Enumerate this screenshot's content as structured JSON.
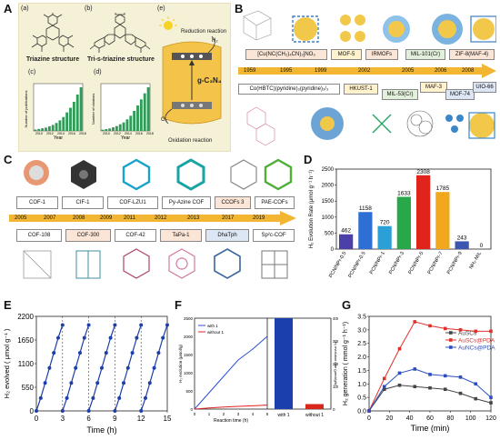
{
  "panels": {
    "A": {
      "label": "A",
      "sub_a": "(a)",
      "sub_b": "(b)",
      "sub_c": "(c)",
      "sub_d": "(d)",
      "sub_e": "(e)",
      "triazine": "Triazine structure",
      "tris_triazine": "Tri-s-triazine structure",
      "gcn": "g-C₃N₄",
      "reduction": "Reduction reaction",
      "oxidation": "Oxidation reaction",
      "ylabel_c": "Number of publications",
      "ylabel_d": "Number of citations",
      "xlabel": "Year",
      "h2": "H₂",
      "o2": "O₂",
      "hist_c": [
        2,
        3,
        4,
        5,
        7,
        9,
        12,
        16,
        21,
        28,
        35,
        44,
        55,
        66
      ],
      "hist_d": [
        2,
        3,
        4,
        6,
        8,
        11,
        14,
        19,
        25,
        33,
        42,
        52,
        62,
        72
      ],
      "years_c": [
        "2010",
        "2012",
        "2014",
        "2016",
        "2018"
      ],
      "colors": {
        "bar": "#2e9b57",
        "bg": "#f0ebc9"
      }
    },
    "B": {
      "label": "B",
      "top_boxes": [
        "[Cu(NC(CH₂)₄CN)₂]NO₃",
        "MOF-5",
        "IRMOFs",
        "MIL-101(Cr)",
        "ZIF-8(MAF-4)"
      ],
      "top_years": [
        "1959",
        "1995",
        "1999",
        "2002",
        "2005",
        "2006",
        "2008"
      ],
      "bottom_boxes": [
        "Co(HBTC)(pyridine)₂(pyridine)₂/₃",
        "HKUST-1",
        "MIL-53(Cr)",
        "MAF-3",
        "MOF-74",
        "UIO-66"
      ],
      "colors": {
        "arrow": "#f2b632",
        "box_top": "#fbe5d6",
        "box_mof": "#fff2cc"
      }
    },
    "C": {
      "label": "C",
      "top_boxes": [
        "COF-1",
        "CIF-1",
        "COF-LZU1",
        "Py-Azine COF",
        "CCOFs 3",
        "PAE-COFs"
      ],
      "top_years": [
        "2005",
        "2007",
        "2008",
        "2009",
        "2011",
        "2012",
        "2013",
        "2017",
        "2019"
      ],
      "bottom_boxes": [
        "COF-108",
        "COF-300",
        "COF-42",
        "TaPa-1",
        "DhaTph",
        "Sp²c-COF"
      ],
      "colors": {
        "arrow": "#f2b632"
      }
    },
    "D": {
      "label": "D",
      "ylabel": "H₂ Evolution Rate (μmol g⁻¹ h⁻¹)"
    },
    "E": {
      "label": "E",
      "ylabel": "H₂ evolved ( μmol g⁻¹ )",
      "xlabel": "Time (h)"
    },
    "F": {
      "label": "F",
      "ylabel_left": "H₂ evolution (μmol/g)",
      "ylabel_right": "H₂ evolution rate (μmol/g/h)",
      "xlabel": "Reaction time (h)",
      "legend_with": "with 1",
      "legend_without": "without 1",
      "bar_labels": [
        "with 1",
        "without 1"
      ]
    },
    "G": {
      "label": "G",
      "ylabel": "H₂ generation ( mmol g⁻¹ h⁻¹)",
      "xlabel": "Time (min)"
    }
  },
  "chart_data": [
    {
      "panel": "D",
      "type": "bar",
      "categories": [
        "PCN/NPr-0.5",
        "PCN/NPr-0.5",
        "PCN/NPr-1",
        "PCN/NPr-3",
        "PCN/NPr-5",
        "PCN/NPr-7",
        "PCN/NPr-9",
        "NH₂-MIL"
      ],
      "values": [
        462,
        1158,
        720,
        1633,
        2308,
        1785,
        243,
        0
      ],
      "colors": [
        "#4b3fa8",
        "#2d6fd4",
        "#2a9fd8",
        "#28a84a",
        "#e0241b",
        "#f2a81d",
        "#3c56b0",
        "#888888"
      ],
      "ylim": [
        0,
        2500
      ],
      "yticks": [
        0,
        500,
        1000,
        1500,
        2000,
        2500
      ],
      "ylabel": "H₂ Evolution Rate (μmol g⁻¹ h⁻¹)"
    },
    {
      "panel": "E",
      "type": "line",
      "cycles": [
        {
          "x": [
            0,
            0.5,
            1,
            1.5,
            2,
            2.5,
            3
          ],
          "y": [
            0,
            300,
            650,
            1000,
            1350,
            1700,
            2000
          ]
        },
        {
          "x": [
            3,
            3.5,
            4,
            4.5,
            5,
            5.5,
            6
          ],
          "y": [
            0,
            300,
            650,
            1000,
            1350,
            1700,
            2000
          ]
        },
        {
          "x": [
            6,
            6.5,
            7,
            7.5,
            8,
            8.5,
            9
          ],
          "y": [
            0,
            300,
            650,
            1000,
            1350,
            1700,
            2000
          ]
        },
        {
          "x": [
            9,
            9.5,
            10,
            10.5,
            11,
            11.5,
            12
          ],
          "y": [
            0,
            300,
            650,
            1000,
            1350,
            1700,
            2000
          ]
        },
        {
          "x": [
            12,
            12.5,
            13,
            13.5,
            14,
            14.5,
            15
          ],
          "y": [
            0,
            300,
            650,
            1000,
            1350,
            1700,
            2000
          ]
        }
      ],
      "xlim": [
        0,
        15
      ],
      "xticks": [
        0,
        3,
        6,
        9,
        12,
        15
      ],
      "ylim": [
        0,
        2200
      ],
      "yticks": [
        0,
        550,
        1100,
        1650,
        2200
      ],
      "xlabel": "Time (h)",
      "ylabel": "H₂ evolved ( μmol g⁻¹ )",
      "color": "#1f3fa8"
    },
    {
      "panel": "F",
      "type": "line",
      "series": [
        {
          "name": "with 1",
          "x": [
            0,
            1,
            2,
            3,
            4,
            5
          ],
          "y": [
            0,
            450,
            900,
            1350,
            1650,
            2000
          ],
          "color": "#2b4fd8"
        },
        {
          "name": "without 1",
          "x": [
            0,
            1,
            2,
            3,
            4,
            5
          ],
          "y": [
            0,
            30,
            55,
            75,
            90,
            110
          ],
          "color": "#e02020"
        }
      ],
      "xlim": [
        0,
        5
      ],
      "xticks": [
        0,
        1,
        2,
        3,
        4,
        5
      ],
      "ylim": [
        0,
        2500
      ],
      "yticks": [
        0,
        500,
        1000,
        1500,
        2000,
        2500
      ],
      "bars": {
        "categories": [
          "with 1",
          "without 1"
        ],
        "values": [
          400,
          22
        ],
        "colors": [
          "#1c3fae",
          "#d8261b"
        ],
        "ylim": [
          0,
          400
        ],
        "yticks": [
          0,
          100,
          200,
          300,
          400
        ]
      }
    },
    {
      "panel": "G",
      "type": "line",
      "series": [
        {
          "name": "AuSCs",
          "x": [
            0,
            15,
            30,
            45,
            60,
            75,
            90,
            105,
            120
          ],
          "y": [
            0,
            0.8,
            0.95,
            0.9,
            0.85,
            0.8,
            0.65,
            0.45,
            0.3
          ],
          "color": "#444444"
        },
        {
          "name": "AuSCs@PDA",
          "x": [
            0,
            15,
            30,
            45,
            60,
            75,
            90,
            105,
            120
          ],
          "y": [
            0,
            1.2,
            2.3,
            3.3,
            3.15,
            3.05,
            3.0,
            2.95,
            2.95
          ],
          "color": "#e0302a"
        },
        {
          "name": "AuNCs@PDA",
          "x": [
            0,
            15,
            30,
            45,
            60,
            75,
            90,
            105,
            120
          ],
          "y": [
            0,
            0.9,
            1.4,
            1.55,
            1.35,
            1.3,
            1.25,
            1.0,
            0.5
          ],
          "color": "#2b4fc0"
        }
      ],
      "xlim": [
        0,
        120
      ],
      "xticks": [
        0,
        20,
        40,
        60,
        80,
        100,
        120
      ],
      "ylim": [
        0,
        3.5
      ],
      "yticks": [
        0.0,
        0.5,
        1.0,
        1.5,
        2.0,
        2.5,
        3.0,
        3.5
      ],
      "xlabel": "Time (min)",
      "ylabel": "H₂ generation ( mmol g⁻¹ h⁻¹)"
    }
  ]
}
